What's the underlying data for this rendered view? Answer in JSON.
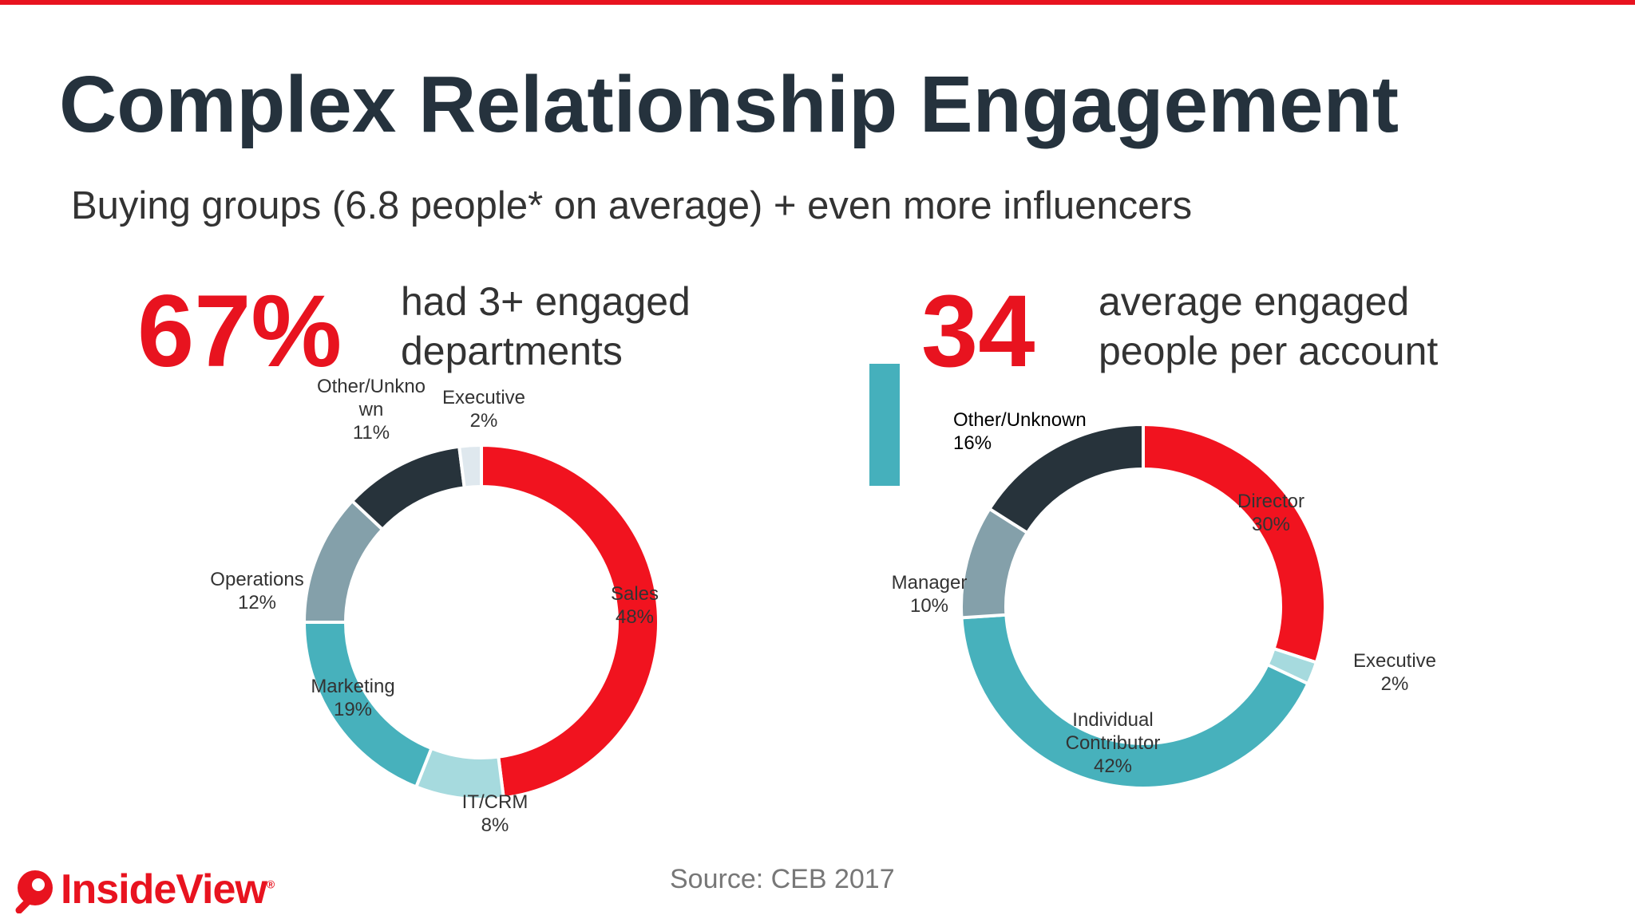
{
  "slide": {
    "title": "Complex Relationship Engagement",
    "subtitle": "Buying groups (6.8 people* on average) + even more influencers",
    "source": "Source: CEB 2017"
  },
  "stats": [
    {
      "value": "67%",
      "line1": "had 3+ engaged",
      "line2": "departments"
    },
    {
      "value": "34",
      "line1": "average engaged",
      "line2": "people per account"
    }
  ],
  "logo": {
    "text": "InsideView",
    "mark": "®"
  },
  "colors": {
    "accent": "#e8131f",
    "dark": "#25323d",
    "teal": "#45b0bc"
  },
  "chart_data": [
    {
      "type": "pie",
      "categories": [
        "Sales",
        "IT/CRM",
        "Marketing",
        "Operations",
        "Other/Unknown",
        "Executive"
      ],
      "values": [
        48,
        8,
        19,
        12,
        11,
        2
      ],
      "labels": [
        [
          "Sales",
          "48%"
        ],
        [
          "IT/CRM",
          "8%"
        ],
        [
          "Marketing",
          "19%"
        ],
        [
          "Operations",
          "12%"
        ],
        [
          "Other/Unkno",
          "wn",
          "11%"
        ],
        [
          "Executive",
          "2%"
        ]
      ],
      "colors": [
        "#f1131f",
        "#a6dade",
        "#47b1bc",
        "#84a0aa",
        "#27333b",
        "#dfe8ee"
      ]
    },
    {
      "type": "pie",
      "categories": [
        "Director",
        "Executive",
        "Individual Contributor",
        "Manager",
        "Other/Unknown"
      ],
      "values": [
        30,
        2,
        42,
        10,
        16
      ],
      "labels": [
        [
          "Director",
          "30%"
        ],
        [
          "Executive",
          "2%"
        ],
        [
          "Individual",
          "Contributor",
          "42%"
        ],
        [
          "Manager",
          "10%"
        ],
        [
          "Other/Unknown",
          "16%"
        ]
      ],
      "colors": [
        "#f1131f",
        "#a6dade",
        "#47b1bc",
        "#84a0aa",
        "#27333b"
      ]
    }
  ]
}
